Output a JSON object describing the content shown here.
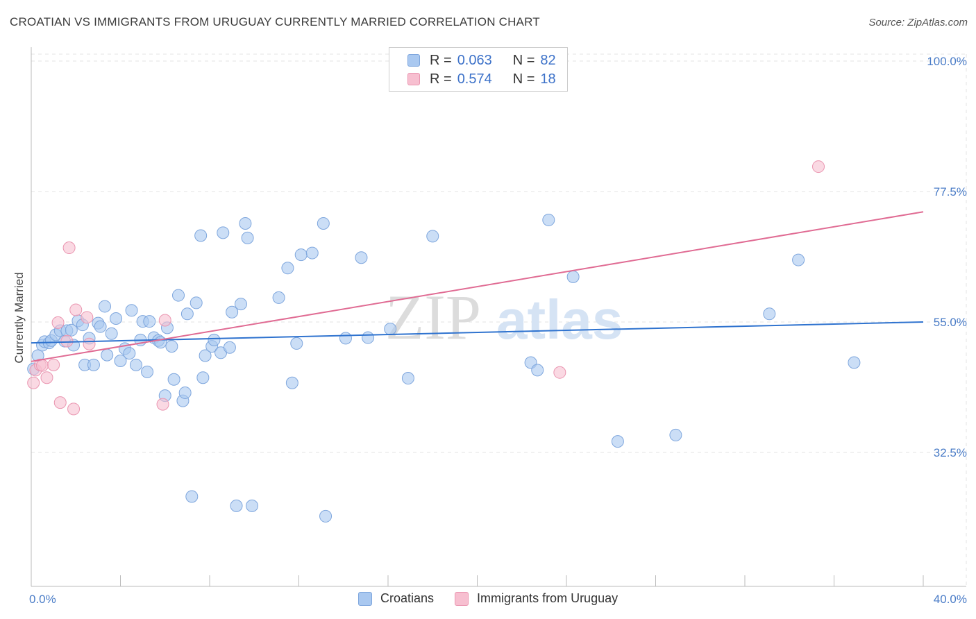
{
  "header": {
    "title": "CROATIAN VS IMMIGRANTS FROM URUGUAY CURRENTLY MARRIED CORRELATION CHART",
    "source": "Source: ZipAtlas.com"
  },
  "watermark": {
    "text_a": "ZIP",
    "text_b": "atlas"
  },
  "legend": {
    "r_label": "R =",
    "n_label": "N =",
    "rows": [
      {
        "r": "0.063",
        "n": "82"
      },
      {
        "r": "0.574",
        "n": "18"
      }
    ]
  },
  "colors": {
    "croatians_fill": "#a9c8f0",
    "croatians_stroke": "#7ea6dd",
    "croatians_line": "#2f73cf",
    "uruguay_fill": "#f7bfd0",
    "uruguay_stroke": "#ea95b0",
    "uruguay_line": "#e06b93",
    "axis_label": "#4a7cc7"
  },
  "chart_data": {
    "type": "scatter",
    "title": "CROATIAN VS IMMIGRANTS FROM URUGUAY CURRENTLY MARRIED CORRELATION CHART",
    "xlabel": "",
    "ylabel": "Currently Married",
    "xlim": [
      0,
      40
    ],
    "ylim": [
      10,
      105
    ],
    "x_tick_labels": [
      {
        "value": 0,
        "label": "0.0%"
      },
      {
        "value": 40,
        "label": "40.0%"
      }
    ],
    "y_tick_labels": [
      {
        "value": 100,
        "label": "100.0%"
      },
      {
        "value": 77.5,
        "label": "77.5%"
      },
      {
        "value": 55,
        "label": "55.0%"
      },
      {
        "value": 32.5,
        "label": "32.5%"
      }
    ],
    "legend_position": "top-center",
    "series": [
      {
        "name": "Croatians",
        "R": 0.063,
        "N": 82,
        "trend": {
          "x": [
            0,
            40
          ],
          "y": [
            51.4,
            55.0
          ]
        },
        "points": [
          [
            0.3,
            49.2
          ],
          [
            0.5,
            51.0
          ],
          [
            0.6,
            51.6
          ],
          [
            0.8,
            51.4
          ],
          [
            0.9,
            51.8
          ],
          [
            1.1,
            52.8
          ],
          [
            1.3,
            53.5
          ],
          [
            1.5,
            51.7
          ],
          [
            1.6,
            53.5
          ],
          [
            1.8,
            53.6
          ],
          [
            1.9,
            51.0
          ],
          [
            2.1,
            55.2
          ],
          [
            2.3,
            54.5
          ],
          [
            2.4,
            47.6
          ],
          [
            2.6,
            52.2
          ],
          [
            2.8,
            47.6
          ],
          [
            3.0,
            54.8
          ],
          [
            3.1,
            54.2
          ],
          [
            3.3,
            57.7
          ],
          [
            3.4,
            49.3
          ],
          [
            3.6,
            53.0
          ],
          [
            3.8,
            55.6
          ],
          [
            4.0,
            48.3
          ],
          [
            4.2,
            50.4
          ],
          [
            4.4,
            49.6
          ],
          [
            4.5,
            57.0
          ],
          [
            4.7,
            47.6
          ],
          [
            4.9,
            51.9
          ],
          [
            5.0,
            55.1
          ],
          [
            5.2,
            46.4
          ],
          [
            5.3,
            55.1
          ],
          [
            5.5,
            52.3
          ],
          [
            5.7,
            51.8
          ],
          [
            5.8,
            51.5
          ],
          [
            6.0,
            42.3
          ],
          [
            6.1,
            54.0
          ],
          [
            6.3,
            50.8
          ],
          [
            6.4,
            45.1
          ],
          [
            6.6,
            59.6
          ],
          [
            6.8,
            41.4
          ],
          [
            6.9,
            42.8
          ],
          [
            7.0,
            56.4
          ],
          [
            7.2,
            24.9
          ],
          [
            7.4,
            58.3
          ],
          [
            7.6,
            69.9
          ],
          [
            7.7,
            45.4
          ],
          [
            7.8,
            49.2
          ],
          [
            8.1,
            50.8
          ],
          [
            8.2,
            51.9
          ],
          [
            8.5,
            49.7
          ],
          [
            8.6,
            70.4
          ],
          [
            8.9,
            50.6
          ],
          [
            9.0,
            56.7
          ],
          [
            9.2,
            23.3
          ],
          [
            9.4,
            58.1
          ],
          [
            9.6,
            72.0
          ],
          [
            9.7,
            69.5
          ],
          [
            9.9,
            23.3
          ],
          [
            11.1,
            59.2
          ],
          [
            11.5,
            64.3
          ],
          [
            11.7,
            44.5
          ],
          [
            11.9,
            51.3
          ],
          [
            12.1,
            66.6
          ],
          [
            12.6,
            66.9
          ],
          [
            13.1,
            72.0
          ],
          [
            13.2,
            21.5
          ],
          [
            14.1,
            52.2
          ],
          [
            14.8,
            66.1
          ],
          [
            15.1,
            52.3
          ],
          [
            16.1,
            53.8
          ],
          [
            16.9,
            45.3
          ],
          [
            18.0,
            69.8
          ],
          [
            22.4,
            48.0
          ],
          [
            22.7,
            46.7
          ],
          [
            23.2,
            72.6
          ],
          [
            24.3,
            62.8
          ],
          [
            26.3,
            34.4
          ],
          [
            28.9,
            35.5
          ],
          [
            33.1,
            56.4
          ],
          [
            34.4,
            65.7
          ],
          [
            36.9,
            48.0
          ],
          [
            0.1,
            46.9
          ]
        ]
      },
      {
        "name": "Immigrants from Uruguay",
        "R": 0.574,
        "N": 18,
        "trend": {
          "x": [
            0,
            40
          ],
          "y": [
            48.2,
            74.0
          ]
        },
        "points": [
          [
            0.1,
            44.5
          ],
          [
            0.2,
            46.7
          ],
          [
            0.4,
            47.6
          ],
          [
            0.5,
            47.5
          ],
          [
            0.7,
            45.4
          ],
          [
            1.0,
            47.6
          ],
          [
            1.2,
            54.9
          ],
          [
            1.3,
            41.1
          ],
          [
            1.6,
            51.7
          ],
          [
            1.7,
            67.8
          ],
          [
            1.9,
            40.0
          ],
          [
            2.0,
            57.1
          ],
          [
            2.5,
            55.8
          ],
          [
            2.6,
            51.2
          ],
          [
            5.9,
            40.8
          ],
          [
            6.0,
            55.3
          ],
          [
            23.7,
            46.3
          ],
          [
            35.3,
            81.8
          ]
        ]
      }
    ]
  },
  "bottom_legend": [
    {
      "label": "Croatians"
    },
    {
      "label": "Immigrants from Uruguay"
    }
  ]
}
